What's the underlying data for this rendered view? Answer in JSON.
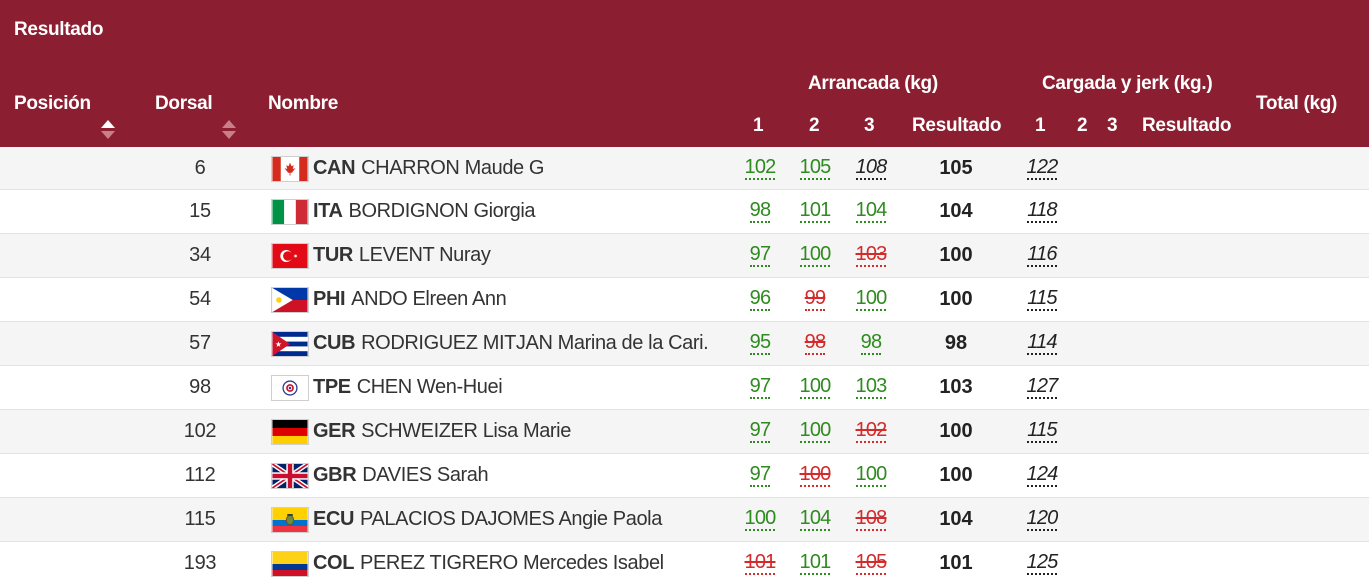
{
  "header": {
    "section_title": "Resultado",
    "col_position": "Posición",
    "col_dorsal": "Dorsal",
    "col_name": "Nombre",
    "group_snatch": "Arrancada (kg)",
    "group_cj": "Cargada y jerk (kg.)",
    "col_total": "Total (kg)",
    "snatch_1": "1",
    "snatch_2": "2",
    "snatch_3": "3",
    "snatch_result": "Resultado",
    "cj_1": "1",
    "cj_2": "2",
    "cj_3": "3",
    "cj_result": "Resultado"
  },
  "colors": {
    "header_bg": "#8b1f31",
    "good_lift": "#2e8b1f",
    "no_lift": "#d32b2b"
  },
  "rows": [
    {
      "dorsal": "6",
      "noc": "CAN",
      "name": "CHARRON Maude G",
      "flag": "can-flag",
      "s1": "102",
      "s1_status": "good",
      "s2": "105",
      "s2_status": "good",
      "s3": "108",
      "s3_status": "pending",
      "s_result": "105",
      "cj1": "122",
      "cj1_status": "pending"
    },
    {
      "dorsal": "15",
      "noc": "ITA",
      "name": "BORDIGNON Giorgia",
      "flag": "ita-flag",
      "s1": "98",
      "s1_status": "good",
      "s2": "101",
      "s2_status": "good",
      "s3": "104",
      "s3_status": "good",
      "s_result": "104",
      "cj1": "118",
      "cj1_status": "pending"
    },
    {
      "dorsal": "34",
      "noc": "TUR",
      "name": "LEVENT Nuray",
      "flag": "tur-flag",
      "s1": "97",
      "s1_status": "good",
      "s2": "100",
      "s2_status": "good",
      "s3": "103",
      "s3_status": "bad",
      "s_result": "100",
      "cj1": "116",
      "cj1_status": "pending"
    },
    {
      "dorsal": "54",
      "noc": "PHI",
      "name": "ANDO Elreen Ann",
      "flag": "phi-flag",
      "s1": "96",
      "s1_status": "good",
      "s2": "99",
      "s2_status": "bad",
      "s3": "100",
      "s3_status": "good",
      "s_result": "100",
      "cj1": "115",
      "cj1_status": "pending"
    },
    {
      "dorsal": "57",
      "noc": "CUB",
      "name": "RODRIGUEZ MITJAN Marina de la Cari.",
      "flag": "cub-flag",
      "s1": "95",
      "s1_status": "good",
      "s2": "98",
      "s2_status": "bad",
      "s3": "98",
      "s3_status": "good",
      "s_result": "98",
      "cj1": "114",
      "cj1_status": "pending"
    },
    {
      "dorsal": "98",
      "noc": "TPE",
      "name": "CHEN Wen-Huei",
      "flag": "tpe-flag",
      "s1": "97",
      "s1_status": "good",
      "s2": "100",
      "s2_status": "good",
      "s3": "103",
      "s3_status": "good",
      "s_result": "103",
      "cj1": "127",
      "cj1_status": "pending"
    },
    {
      "dorsal": "102",
      "noc": "GER",
      "name": "SCHWEIZER Lisa Marie",
      "flag": "ger-flag",
      "s1": "97",
      "s1_status": "good",
      "s2": "100",
      "s2_status": "good",
      "s3": "102",
      "s3_status": "bad",
      "s_result": "100",
      "cj1": "115",
      "cj1_status": "pending"
    },
    {
      "dorsal": "112",
      "noc": "GBR",
      "name": "DAVIES Sarah",
      "flag": "gbr-flag",
      "s1": "97",
      "s1_status": "good",
      "s2": "100",
      "s2_status": "bad",
      "s3": "100",
      "s3_status": "good",
      "s_result": "100",
      "cj1": "124",
      "cj1_status": "pending"
    },
    {
      "dorsal": "115",
      "noc": "ECU",
      "name": "PALACIOS DAJOMES Angie Paola",
      "flag": "ecu-flag",
      "s1": "100",
      "s1_status": "good",
      "s2": "104",
      "s2_status": "good",
      "s3": "108",
      "s3_status": "bad",
      "s_result": "104",
      "cj1": "120",
      "cj1_status": "pending"
    },
    {
      "dorsal": "193",
      "noc": "COL",
      "name": "PEREZ TIGRERO Mercedes Isabel",
      "flag": "col-flag",
      "s1": "101",
      "s1_status": "bad",
      "s2": "101",
      "s2_status": "good",
      "s3": "105",
      "s3_status": "bad",
      "s_result": "101",
      "cj1": "125",
      "cj1_status": "pending"
    }
  ]
}
